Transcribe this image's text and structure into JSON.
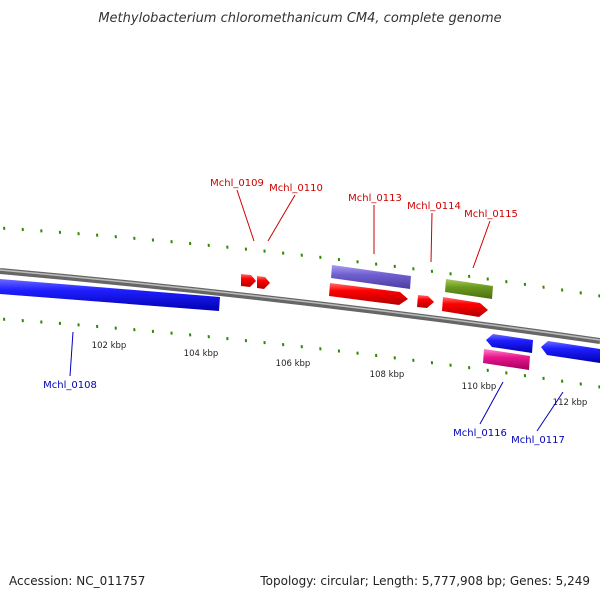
{
  "title": "Methylobacterium chloromethanicum CM4, complete genome",
  "footer": {
    "accession": "Accession: NC_011757",
    "summary": "Topology: circular; Length: 5,777,908 bp; Genes: 5,249"
  },
  "colors": {
    "backbone_dark": "#666666",
    "backbone_light": "#bbbbbb",
    "tick": "#2e8b00",
    "gene_blue": "#1f1fff",
    "gene_red": "#ff0000",
    "gene_purple": "#7060d0",
    "gene_olive": "#6b9a20",
    "gene_pink": "#e8168c",
    "label_red": "#cc0000",
    "label_blue": "#0000bb"
  },
  "scale_labels": [
    "102 kbp",
    "104 kbp",
    "106 kbp",
    "108 kbp",
    "110 kbp",
    "112 kbp"
  ],
  "gene_labels": [
    {
      "text": "Mchl_0108",
      "strand": "minus"
    },
    {
      "text": "Mchl_0109",
      "strand": "plus"
    },
    {
      "text": "Mchl_0110",
      "strand": "plus"
    },
    {
      "text": "Mchl_0113",
      "strand": "plus"
    },
    {
      "text": "Mchl_0114",
      "strand": "plus"
    },
    {
      "text": "Mchl_0115",
      "strand": "plus"
    },
    {
      "text": "Mchl_0116",
      "strand": "minus"
    },
    {
      "text": "Mchl_0117",
      "strand": "minus"
    }
  ]
}
